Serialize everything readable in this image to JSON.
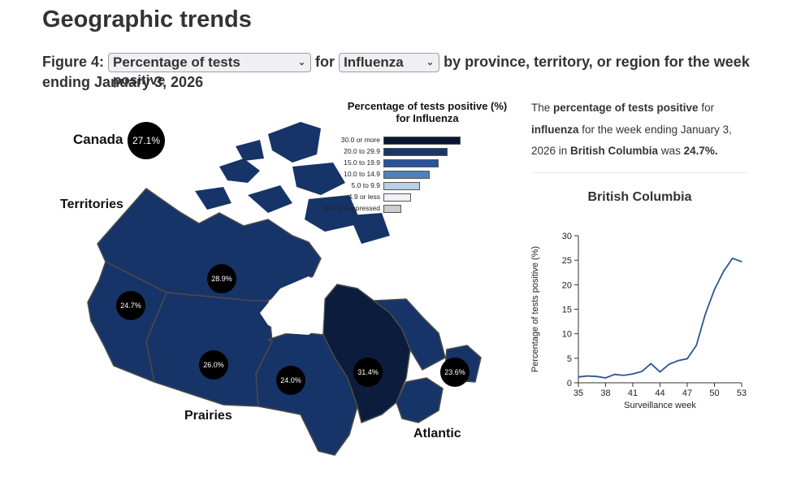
{
  "page": {
    "title": "Geographic trends",
    "figure_prefix": "Figure 4:",
    "measure_select": "Percentage of tests positive",
    "for_word": "for",
    "disease_select": "Influenza",
    "figure_suffix": "by province, territory, or region for the week ending January 3, 2026"
  },
  "map": {
    "canada_label": "Canada",
    "canada_value": "27.1%",
    "regions": {
      "territories": "Territories",
      "prairies": "Prairies",
      "atlantic": "Atlantic"
    },
    "values": {
      "territories": "28.9%",
      "bc": "24.7%",
      "prairies": "26.0%",
      "ontario": "24.0%",
      "quebec": "31.4%",
      "atlantic": "23.6%"
    },
    "colors": {
      "mid": "#173468",
      "dark": "#0c1c3c",
      "border": "#4a4a4a"
    }
  },
  "legend": {
    "title": "Percentage of tests positive (%) for Influenza",
    "items": [
      {
        "label": "30.0 or more",
        "color": "#0a1733"
      },
      {
        "label": "20.0 to 29.9",
        "color": "#183669"
      },
      {
        "label": "15.0 to 19.9",
        "color": "#29539a"
      },
      {
        "label": "10.0 to 14.9",
        "color": "#4a82bf"
      },
      {
        "label": "5.0 to 9.9",
        "color": "#b8d0e6"
      },
      {
        "label": "4.9 or less",
        "color": "#f0f0f8"
      },
      {
        "label": "N/A or suppressed",
        "color": "#cccccc"
      }
    ]
  },
  "summary": {
    "t1": "The ",
    "b1": "percentage of tests positive",
    "t2": " for ",
    "b2": "influenza",
    "t3": " for the week ending January 3, 2026 in ",
    "b3": "British Columbia",
    "t4": " was ",
    "b4": "24.7%."
  },
  "chart_data": {
    "type": "line",
    "title": "British Columbia",
    "xlabel": "Surveillance week",
    "ylabel": "Percentage of tests positive (%)",
    "xlim": [
      35,
      53
    ],
    "ylim": [
      0,
      30
    ],
    "xticks": [
      35,
      38,
      41,
      44,
      47,
      50,
      53
    ],
    "yticks": [
      0,
      5,
      10,
      15,
      20,
      25,
      30
    ],
    "grid": false,
    "color": "#2b5592",
    "x": [
      35,
      36,
      37,
      38,
      39,
      40,
      41,
      42,
      43,
      44,
      45,
      46,
      47,
      48,
      49,
      50,
      51,
      52,
      53
    ],
    "y": [
      1.2,
      1.4,
      1.3,
      1.0,
      1.7,
      1.5,
      1.8,
      2.3,
      3.9,
      2.2,
      3.8,
      4.5,
      4.9,
      7.6,
      14.0,
      19.0,
      22.7,
      25.4,
      24.7
    ]
  }
}
